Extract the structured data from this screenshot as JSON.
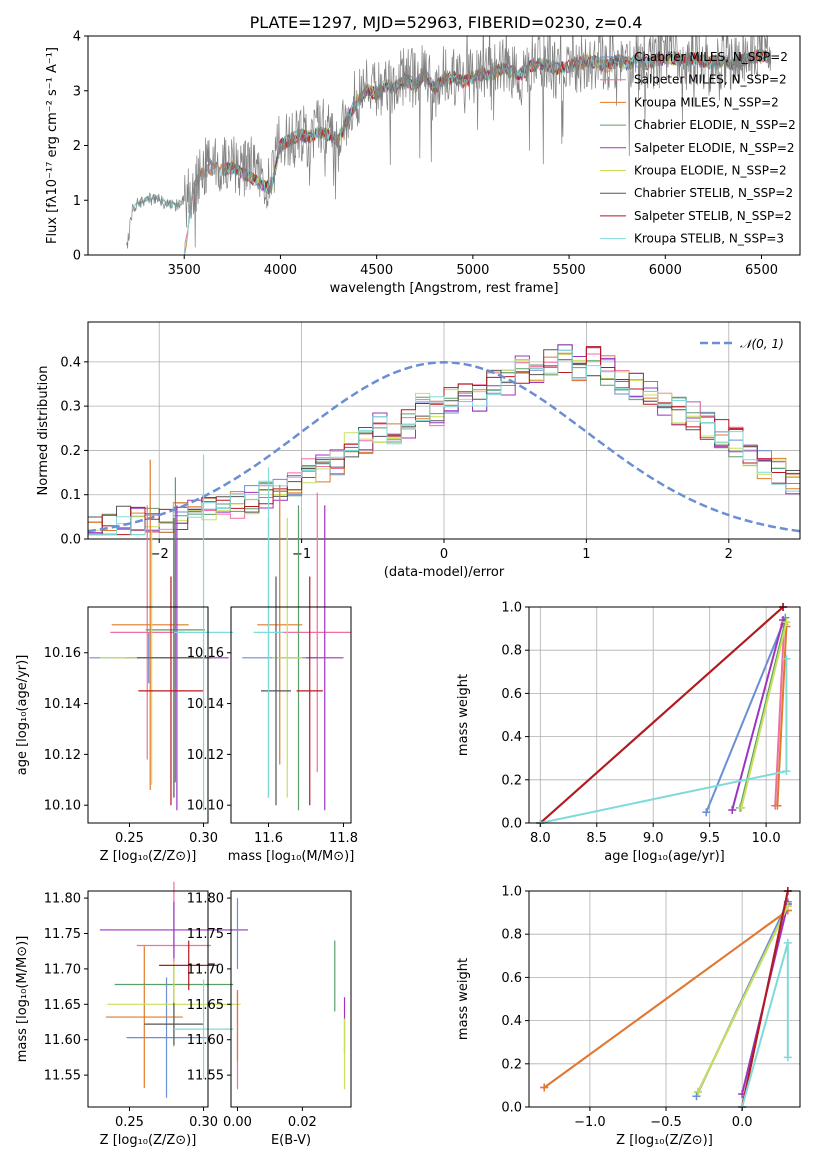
{
  "chart_data": [
    {
      "type": "line",
      "title": "PLATE=1297, MJD=52963, FIBERID=0230, z=0.4",
      "xlabel": "wavelength [Angstrom, rest frame]",
      "ylabel": "Flux [fλ10⁻¹⁷ erg cm⁻² s⁻¹ A⁻¹]",
      "xlim": [
        3000,
        6700
      ],
      "ylim": [
        0,
        4
      ],
      "xticks": [
        "3500",
        "4000",
        "4500",
        "5000",
        "5500",
        "6000",
        "6500"
      ],
      "yticks": [
        "0",
        "1",
        "2",
        "3",
        "4"
      ],
      "legend_position": "top-right",
      "legend": [
        "Chabrier MILES, N_SSP=2",
        "Salpeter MILES, N_SSP=2",
        "Kroupa MILES, N_SSP=2",
        "Chabrier ELODIE, N_SSP=2",
        "Salpeter ELODIE, N_SSP=2",
        "Kroupa ELODIE, N_SSP=2",
        "Chabrier STELIB, N_SSP=2",
        "Salpeter STELIB, N_SSP=2",
        "Kroupa STELIB, N_SSP=3"
      ],
      "colors": [
        "#6a8fd4",
        "#f06fa2",
        "#e07a2a",
        "#5c9e68",
        "#9b35c0",
        "#c8e05a",
        "#555555",
        "#b8181e",
        "#80dada"
      ],
      "data_spectrum": {
        "x": [
          3200,
          3230,
          3260,
          3300,
          3350,
          3400,
          3450,
          3500,
          3550,
          3600,
          3650,
          3700,
          3750,
          3800,
          3850,
          3900,
          3950,
          4000,
          4050,
          4100,
          4150,
          4200,
          4250,
          4300,
          4350,
          4400,
          4450,
          4500,
          4550,
          4600,
          4650,
          4700,
          4750,
          4800,
          4850,
          4900,
          4950,
          5000,
          5050,
          5100,
          5150,
          5200,
          5250,
          5300,
          5350,
          5400,
          5450,
          5500,
          5550,
          5600,
          5650,
          5700,
          5750,
          5800,
          5850,
          5900,
          5950,
          6000,
          6050,
          6100,
          6150,
          6200,
          6250,
          6300,
          6350,
          6400,
          6450,
          6500,
          6550
        ],
        "y": [
          0.1,
          0.8,
          0.95,
          1.0,
          1.05,
          0.95,
          0.9,
          1.0,
          1.2,
          1.6,
          1.7,
          1.6,
          1.7,
          1.5,
          1.7,
          1.4,
          1.2,
          2.2,
          2.0,
          2.3,
          2.1,
          2.4,
          2.2,
          2.0,
          2.6,
          2.9,
          3.1,
          3.0,
          3.2,
          3.1,
          3.3,
          3.2,
          3.4,
          2.9,
          3.3,
          3.3,
          3.1,
          3.3,
          3.4,
          3.3,
          3.5,
          3.4,
          3.2,
          3.5,
          3.6,
          3.5,
          3.3,
          3.4,
          3.5,
          3.6,
          3.5,
          3.4,
          3.6,
          3.5,
          3.6,
          3.4,
          3.5,
          3.7,
          3.6,
          3.5,
          3.7,
          3.5,
          3.4,
          3.6,
          3.5,
          3.6,
          3.7,
          3.8,
          3.7
        ]
      },
      "model_curve": {
        "x": [
          3500,
          3550,
          3600,
          3650,
          3700,
          3750,
          3800,
          3850,
          3900,
          3950,
          4000,
          4050,
          4100,
          4150,
          4200,
          4250,
          4300,
          4350,
          4400,
          4450,
          4500,
          4550,
          4600,
          4650,
          4700,
          4750,
          4800,
          4850,
          4900,
          4950,
          5000,
          5050,
          5100,
          5150,
          5200,
          5250,
          5300,
          5350,
          5400,
          5450,
          5500,
          5550,
          5600,
          5650,
          5700,
          5750,
          5800,
          5850,
          5900,
          5950,
          6000,
          6050,
          6100,
          6150,
          6200,
          6250,
          6300,
          6350,
          6400,
          6450,
          6500,
          6550
        ],
        "y": [
          0.0,
          1.3,
          1.5,
          1.6,
          1.55,
          1.6,
          1.5,
          1.4,
          1.3,
          1.2,
          2.0,
          2.1,
          2.2,
          2.15,
          2.25,
          2.2,
          2.1,
          2.5,
          2.8,
          3.0,
          2.95,
          3.1,
          3.05,
          3.2,
          3.1,
          3.3,
          3.05,
          3.2,
          3.25,
          3.15,
          3.25,
          3.3,
          3.3,
          3.4,
          3.35,
          3.3,
          3.45,
          3.5,
          3.45,
          3.4,
          3.45,
          3.5,
          3.55,
          3.5,
          3.45,
          3.55,
          3.5,
          3.55,
          3.5,
          3.55,
          3.6,
          3.6,
          3.55,
          3.6,
          3.55,
          3.5,
          3.55,
          3.5,
          3.55,
          3.6,
          3.65,
          3.6
        ]
      }
    },
    {
      "type": "histogram",
      "xlabel": "(data-model)/error",
      "ylabel": "Normed distribution",
      "xlim": [
        -2.5,
        2.5
      ],
      "ylim": [
        0,
        0.49
      ],
      "xticks": [
        "−2",
        "−1",
        "0",
        "1",
        "2"
      ],
      "yticks": [
        "0.0",
        "0.1",
        "0.2",
        "0.3",
        "0.4"
      ],
      "grid": true,
      "legend_position": "top-right",
      "reference_label": "𝒩(0, 1)",
      "bin_width": 0.1,
      "bins_start": -2.5,
      "hist_values": [
        0.02,
        0.03,
        0.04,
        0.04,
        0.035,
        0.04,
        0.05,
        0.06,
        0.07,
        0.09,
        0.08,
        0.09,
        0.1,
        0.11,
        0.13,
        0.15,
        0.16,
        0.18,
        0.21,
        0.22,
        0.25,
        0.24,
        0.26,
        0.3,
        0.29,
        0.31,
        0.33,
        0.32,
        0.35,
        0.36,
        0.38,
        0.37,
        0.4,
        0.41,
        0.39,
        0.4,
        0.38,
        0.36,
        0.34,
        0.33,
        0.31,
        0.29,
        0.28,
        0.26,
        0.24,
        0.22,
        0.19,
        0.17,
        0.15,
        0.13
      ],
      "hist_spread": 0.035
    },
    {
      "type": "scatter",
      "xlabel": "Z [log₁₀(Z/Z⊙)]",
      "ylabel": "age  [log₁₀(age/yr)]",
      "xlim": [
        0.222,
        0.303
      ],
      "ylim": [
        10.093,
        10.178
      ],
      "xticks": [
        "0.25",
        "0.30"
      ],
      "yticks": [
        "10.10",
        "10.12",
        "10.14",
        "10.16"
      ],
      "points": [
        {
          "x": 0.263,
          "y": 10.158,
          "xerr": 0.04,
          "yerr": 0.01
        },
        {
          "x": 0.262,
          "y": 10.168,
          "xerr": 0.025,
          "yerr": 0.05
        },
        {
          "x": 0.264,
          "y": 10.171,
          "xerr": 0.026,
          "yerr": 0.065
        },
        {
          "x": 0.281,
          "y": 10.169,
          "xerr": 0.02,
          "yerr": 0.06
        },
        {
          "x": 0.282,
          "y": 10.158,
          "xerr": 0.035,
          "yerr": 0.06
        },
        {
          "x": 0.265,
          "y": 10.158,
          "xerr": 0.035,
          "yerr": 0.05
        },
        {
          "x": 0.28,
          "y": 10.158,
          "xerr": 0.025,
          "yerr": 0.055
        },
        {
          "x": 0.278,
          "y": 10.145,
          "xerr": 0.022,
          "yerr": 0.045
        },
        {
          "x": 0.3,
          "y": 10.168,
          "xerr": 0.02,
          "yerr": 0.07
        }
      ]
    },
    {
      "type": "scatter",
      "xlabel": "mass [log₁₀(M/M⊙)]",
      "ylabel": "",
      "xlim": [
        11.5,
        11.82
      ],
      "ylim": [
        10.093,
        10.178
      ],
      "xticks": [
        "11.6",
        "11.8"
      ],
      "yticks": [
        "10.10",
        "10.12",
        "10.14",
        "10.16"
      ],
      "points": [
        {
          "x": 11.6,
          "y": 10.158,
          "xerr": 0.07,
          "yerr": 0.055
        },
        {
          "x": 11.73,
          "y": 10.168,
          "xerr": 0.09,
          "yerr": 0.055
        },
        {
          "x": 11.63,
          "y": 10.171,
          "xerr": 0.06,
          "yerr": 0.055
        },
        {
          "x": 11.68,
          "y": 10.158,
          "xerr": 0.05,
          "yerr": 0.06
        },
        {
          "x": 11.75,
          "y": 10.158,
          "xerr": 0.05,
          "yerr": 0.06
        },
        {
          "x": 11.65,
          "y": 10.158,
          "xerr": 0.04,
          "yerr": 0.055
        },
        {
          "x": 11.62,
          "y": 10.145,
          "xerr": 0.04,
          "yerr": 0.045
        },
        {
          "x": 11.71,
          "y": 10.145,
          "xerr": 0.035,
          "yerr": 0.045
        },
        {
          "x": 11.6,
          "y": 10.168,
          "xerr": 0.04,
          "yerr": 0.065
        }
      ]
    },
    {
      "type": "line",
      "xlabel": "age  [log₁₀(age/yr)]",
      "ylabel": "mass weight",
      "xlim": [
        7.9,
        10.3
      ],
      "ylim": [
        0,
        1
      ],
      "xticks": [
        "8.0",
        "8.5",
        "9.0",
        "9.5",
        "10.0"
      ],
      "yticks": [
        "0.0",
        "0.2",
        "0.4",
        "0.6",
        "0.8",
        "1.0"
      ],
      "grid": true,
      "series_lines": [
        {
          "x": [
            9.47,
            10.17
          ],
          "y": [
            0.05,
            0.95
          ]
        },
        {
          "x": [
            10.08,
            10.16
          ],
          "y": [
            0.08,
            0.92
          ]
        },
        {
          "x": [
            10.1,
            10.18
          ],
          "y": [
            0.08,
            0.91
          ]
        },
        {
          "x": [
            9.77,
            10.17
          ],
          "y": [
            0.07,
            0.93
          ]
        },
        {
          "x": [
            9.7,
            10.15
          ],
          "y": [
            0.06,
            0.94
          ]
        },
        {
          "x": [
            9.78,
            10.18
          ],
          "y": [
            0.07,
            0.93
          ]
        },
        {
          "x": [
            8.0,
            10.15
          ],
          "y": [
            0.0,
            1.0
          ]
        },
        {
          "x": [
            8.0,
            10.15
          ],
          "y": [
            0.0,
            1.0
          ]
        },
        {
          "x": [
            8.0,
            10.18,
            10.18
          ],
          "y": [
            0.0,
            0.24,
            0.76
          ]
        }
      ]
    },
    {
      "type": "scatter",
      "xlabel": "Z [log₁₀(Z/Z⊙)]",
      "ylabel": "mass [log₁₀(M/M⊙)]",
      "xlim": [
        0.222,
        0.303
      ],
      "ylim": [
        11.505,
        11.81
      ],
      "xticks": [
        "0.25",
        "0.30"
      ],
      "yticks": [
        "11.55",
        "11.60",
        "11.65",
        "11.70",
        "11.75",
        "11.80"
      ],
      "points": [
        {
          "x": 0.275,
          "y": 11.603,
          "xerr": 0.027,
          "yerr": 0.085
        },
        {
          "x": 0.28,
          "y": 11.733,
          "xerr": 0.025,
          "yerr": 0.09
        },
        {
          "x": 0.26,
          "y": 11.632,
          "xerr": 0.026,
          "yerr": 0.1
        },
        {
          "x": 0.28,
          "y": 11.678,
          "xerr": 0.04,
          "yerr": 0.03
        },
        {
          "x": 0.28,
          "y": 11.755,
          "xerr": 0.05,
          "yerr": 0.04
        },
        {
          "x": 0.28,
          "y": 11.65,
          "xerr": 0.045,
          "yerr": 0.06
        },
        {
          "x": 0.28,
          "y": 11.622,
          "xerr": 0.02,
          "yerr": 0.03
        },
        {
          "x": 0.29,
          "y": 11.705,
          "xerr": 0.02,
          "yerr": 0.035
        },
        {
          "x": 0.3,
          "y": 11.615,
          "xerr": 0.02,
          "yerr": 0.07
        }
      ]
    },
    {
      "type": "scatter",
      "xlabel": "E(B-V)",
      "ylabel": "",
      "xlim": [
        -0.002,
        0.035
      ],
      "ylim": [
        11.505,
        11.81
      ],
      "xticks": [
        "0.00",
        "0.02"
      ],
      "yticks": [
        "11.55",
        "11.60",
        "11.65",
        "11.70",
        "11.75",
        "11.80"
      ],
      "points": [
        {
          "x": 0.0,
          "y": 11.75,
          "xerr": 0,
          "yerr": 0.05
        },
        {
          "x": 0.0,
          "y": 11.6,
          "xerr": 0,
          "yerr": 0.07
        },
        {
          "x": 0.0,
          "y": 11.62,
          "xerr": 0,
          "yerr": 0.05
        },
        {
          "x": 0.03,
          "y": 11.69,
          "xerr": 0,
          "yerr": 0.05
        },
        {
          "x": 0.033,
          "y": 11.62,
          "xerr": 0,
          "yerr": 0.04
        },
        {
          "x": 0.033,
          "y": 11.58,
          "xerr": 0,
          "yerr": 0.05
        }
      ]
    },
    {
      "type": "line",
      "xlabel": "Z [log₁₀(Z/Z⊙)]",
      "ylabel": "mass weight",
      "xlim": [
        -1.4,
        0.38
      ],
      "ylim": [
        0,
        1
      ],
      "xticks": [
        "−1.0",
        "−0.5",
        "0.0"
      ],
      "yticks": [
        "0.0",
        "0.2",
        "0.4",
        "0.6",
        "0.8",
        "1.0"
      ],
      "grid": true,
      "series_lines": [
        {
          "x": [
            -0.3,
            0.3
          ],
          "y": [
            0.05,
            0.95
          ]
        },
        {
          "x": [
            -1.3,
            0.3
          ],
          "y": [
            0.09,
            0.91
          ]
        },
        {
          "x": [
            -1.3,
            0.3
          ],
          "y": [
            0.09,
            0.91
          ]
        },
        {
          "x": [
            -0.29,
            0.3
          ],
          "y": [
            0.07,
            0.93
          ]
        },
        {
          "x": [
            0.0,
            0.3
          ],
          "y": [
            0.06,
            0.94
          ]
        },
        {
          "x": [
            -0.29,
            0.3
          ],
          "y": [
            0.07,
            0.93
          ]
        },
        {
          "x": [
            0.0,
            0.3
          ],
          "y": [
            0.0,
            1.0
          ]
        },
        {
          "x": [
            0.0,
            0.3
          ],
          "y": [
            0.0,
            1.0
          ]
        },
        {
          "x": [
            0.0,
            0.3,
            0.3
          ],
          "y": [
            0.0,
            0.76,
            0.23
          ]
        }
      ]
    }
  ]
}
